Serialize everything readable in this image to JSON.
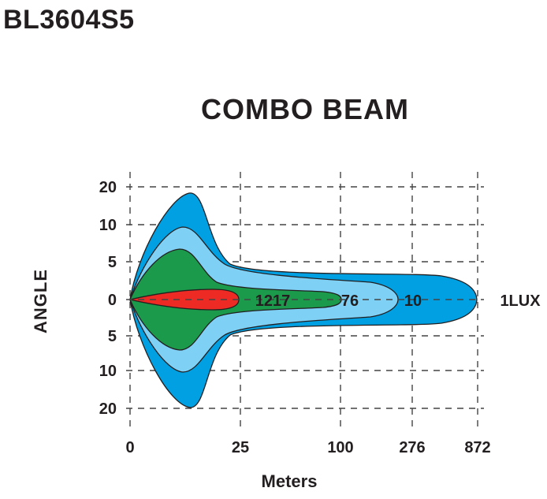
{
  "model": "BL3604S5",
  "chart_data": {
    "type": "area",
    "title": "COMBO  BEAM",
    "xlabel": "Meters",
    "ylabel": "ANGLE",
    "x_ticks": [
      "0",
      "25",
      "100",
      "276",
      "872"
    ],
    "y_ticks": [
      "20",
      "10",
      "5",
      "0",
      "5",
      "10",
      "20"
    ],
    "grid": true,
    "lux_unit_label": "1LUX",
    "series": [
      {
        "lux_level": "1",
        "reach_m": 872,
        "max_half_angle_deg": 20,
        "color": "#00a0e3"
      },
      {
        "lux_level": "10",
        "reach_m": 276,
        "max_half_angle_deg": 10,
        "color": "#7fd0f5"
      },
      {
        "lux_level": "76",
        "reach_m": 100,
        "max_half_angle_deg": 6.5,
        "color": "#1a9a4a"
      },
      {
        "lux_level": "1217",
        "reach_m": 25,
        "max_half_angle_deg": 1,
        "color": "#ee2a24"
      }
    ],
    "point_labels": [
      "1217",
      "76",
      "10"
    ]
  }
}
